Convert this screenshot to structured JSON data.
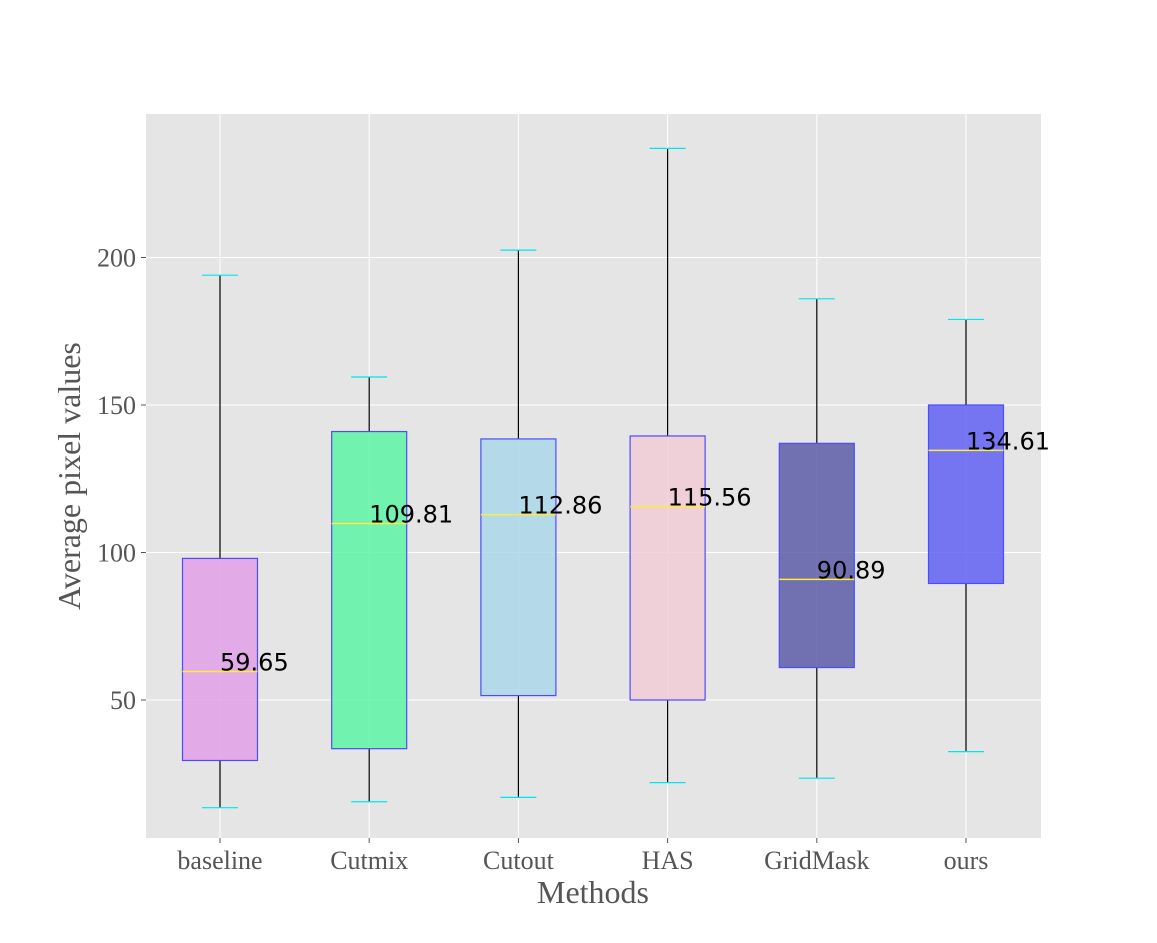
{
  "chart_data": {
    "type": "box",
    "title": "",
    "xlabel": "Methods",
    "ylabel": "Average pixel values",
    "ylim": [
      0,
      245
    ],
    "yticks": [
      50,
      100,
      150,
      200
    ],
    "ytick_labels": [
      "50",
      "100",
      "150",
      "200"
    ],
    "grid": true,
    "categories": [
      "baseline",
      "Cutmix",
      "Cutout",
      "HAS",
      "GridMask",
      "ours"
    ],
    "boxes": [
      {
        "name": "baseline",
        "whisker_low": 13.5,
        "q1": 29.5,
        "median": 59.65,
        "q3": 98.0,
        "whisker_high": 194.0,
        "median_label": "59.65",
        "color": "#e2a0e6"
      },
      {
        "name": "Cutmix",
        "whisker_low": 15.5,
        "q1": 33.5,
        "median": 109.81,
        "q3": 141.0,
        "whisker_high": 159.5,
        "median_label": "109.81",
        "color": "#5ef5a6"
      },
      {
        "name": "Cutout",
        "whisker_low": 17.0,
        "q1": 51.5,
        "median": 112.86,
        "q3": 138.5,
        "whisker_high": 202.5,
        "median_label": "112.86",
        "color": "#abd7ea"
      },
      {
        "name": "HAS",
        "whisker_low": 22.0,
        "q1": 50.0,
        "median": 115.56,
        "q3": 139.5,
        "whisker_high": 237.0,
        "median_label": "115.56",
        "color": "#f1cdd7"
      },
      {
        "name": "GridMask",
        "whisker_low": 23.5,
        "q1": 61.0,
        "median": 90.89,
        "q3": 137.0,
        "whisker_high": 186.0,
        "median_label": "90.89",
        "color": "#5d5ca8"
      },
      {
        "name": "ours",
        "whisker_low": 32.5,
        "q1": 89.5,
        "median": 134.61,
        "q3": 150.0,
        "whisker_high": 179.0,
        "median_label": "134.61",
        "color": "#6262f5"
      }
    ],
    "colors": {
      "background": "#e5e5e5",
      "grid": "#ffffff",
      "box_edge": "#4c4cff",
      "median_line": "#ffeb3b",
      "cap": "#00e5ee",
      "whisker": "#000000"
    }
  }
}
